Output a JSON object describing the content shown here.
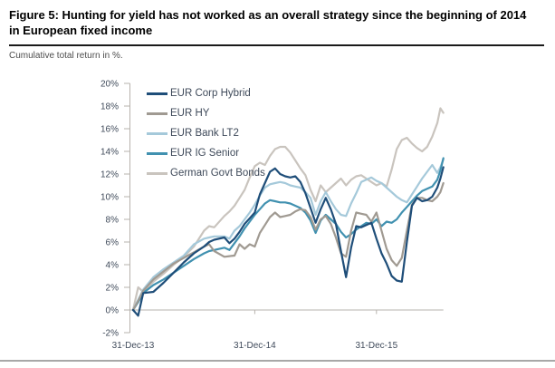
{
  "header": {
    "title": "Figure 5: Hunting for yield has not worked as an overall strategy since the beginning of 2014 in European fixed income",
    "subtitle": "Cumulative total return in %."
  },
  "legend": {
    "items": [
      {
        "label": "EUR Corp Hybrid",
        "color": "#1f4e79"
      },
      {
        "label": "EUR HY",
        "color": "#a09a92"
      },
      {
        "label": "EUR Bank LT2",
        "color": "#a5c9da"
      },
      {
        "label": "EUR IG Senior",
        "color": "#4191b0"
      },
      {
        "label": "German Govt Bonds",
        "color": "#c9c4be"
      }
    ]
  },
  "chart_data": {
    "type": "line",
    "title": "Hunting for yield has not worked as an overall strategy since the beginning of 2014 in European fixed income",
    "ylabel": "Cumulative total return in %",
    "ylim": [
      -2,
      20
    ],
    "grid": false,
    "legend_position": "top-left-inside",
    "x_unit": "months since 31-Dec-13",
    "x": [
      0,
      0.5,
      1,
      2,
      3,
      4,
      5,
      6,
      7,
      7.5,
      8,
      9,
      9.5,
      10,
      10.5,
      11,
      11.5,
      12,
      12.5,
      13,
      13.5,
      14,
      14.5,
      15,
      15.5,
      16,
      16.5,
      17,
      17.5,
      18,
      18.5,
      19,
      19.5,
      20,
      20.5,
      21,
      21.5,
      22,
      22.5,
      23,
      23.5,
      24,
      24.5,
      25,
      25.5,
      26,
      26.5,
      27,
      27.5,
      28,
      28.5,
      29,
      29.5,
      30,
      30.3,
      30.6
    ],
    "y_ticks": [
      {
        "label": "20%",
        "value": 20
      },
      {
        "label": "18%",
        "value": 18
      },
      {
        "label": "16%",
        "value": 16
      },
      {
        "label": "14%",
        "value": 14
      },
      {
        "label": "12%",
        "value": 12
      },
      {
        "label": "10%",
        "value": 10
      },
      {
        "label": "8%",
        "value": 8
      },
      {
        "label": "6%",
        "value": 6
      },
      {
        "label": "4%",
        "value": 4
      },
      {
        "label": "2%",
        "value": 2
      },
      {
        "label": "0%",
        "value": 0
      },
      {
        "label": "-2%",
        "value": -2
      }
    ],
    "x_ticks": [
      {
        "label": "31-Dec-13",
        "month": 0
      },
      {
        "label": "31-Dec-14",
        "month": 12
      },
      {
        "label": "31-Dec-15",
        "month": 24
      }
    ],
    "series": [
      {
        "name": "EUR Corp Hybrid",
        "color": "#1f4e79",
        "values": [
          0,
          -0.5,
          1.5,
          1.6,
          2.4,
          3.3,
          4.2,
          5.0,
          5.6,
          6.0,
          6.2,
          6.4,
          5.9,
          6.3,
          6.9,
          7.6,
          8.1,
          8.6,
          10.2,
          11.2,
          12.2,
          12.5,
          12.0,
          11.8,
          11.7,
          11.8,
          11.3,
          10.3,
          9.0,
          7.7,
          8.9,
          9.9,
          8.9,
          7.6,
          5.2,
          2.9,
          5.5,
          7.4,
          7.3,
          7.5,
          7.7,
          6.3,
          5.0,
          4.1,
          3.0,
          2.6,
          2.5,
          6.0,
          9.2,
          9.9,
          9.6,
          9.7,
          10.0,
          10.8,
          11.6,
          12.6
        ]
      },
      {
        "name": "EUR HY",
        "color": "#a09a92",
        "values": [
          0,
          0.8,
          1.7,
          2.7,
          3.4,
          4.1,
          4.6,
          5.1,
          5.6,
          5.8,
          5.2,
          4.7,
          4.75,
          4.8,
          5.8,
          5.4,
          5.8,
          5.6,
          6.8,
          7.5,
          8.2,
          8.6,
          8.2,
          8.3,
          8.4,
          8.7,
          8.9,
          8.8,
          8.2,
          7.1,
          8.0,
          8.3,
          7.6,
          6.4,
          5.0,
          4.7,
          7.0,
          8.6,
          8.5,
          8.4,
          7.8,
          8.6,
          7.0,
          5.4,
          4.4,
          3.9,
          4.6,
          7.0,
          9.3,
          9.9,
          9.9,
          9.7,
          9.6,
          10.0,
          10.4,
          11.2
        ]
      },
      {
        "name": "EUR Bank LT2",
        "color": "#a5c9da",
        "values": [
          0,
          0.9,
          1.8,
          2.9,
          3.6,
          4.2,
          4.8,
          5.8,
          6.3,
          6.4,
          6.5,
          6.5,
          6.3,
          7.0,
          7.4,
          8.0,
          8.6,
          9.3,
          10.1,
          10.8,
          11.1,
          11.2,
          11.3,
          11.2,
          11.0,
          10.9,
          10.8,
          10.4,
          9.9,
          8.4,
          9.6,
          10.4,
          9.6,
          8.9,
          8.4,
          8.3,
          9.4,
          10.3,
          11.3,
          11.5,
          11.7,
          11.4,
          11.2,
          10.8,
          10.4,
          10.0,
          9.7,
          9.5,
          10.2,
          10.9,
          11.6,
          12.2,
          12.8,
          12.1,
          12.6,
          13.3
        ]
      },
      {
        "name": "EUR IG Senior",
        "color": "#4191b0",
        "values": [
          0,
          0.7,
          1.5,
          2.2,
          2.7,
          3.3,
          3.9,
          4.5,
          5.0,
          5.2,
          5.3,
          5.5,
          5.3,
          5.9,
          6.5,
          7.2,
          7.8,
          8.4,
          8.9,
          9.4,
          9.7,
          9.6,
          9.5,
          9.5,
          9.4,
          9.2,
          9.0,
          8.6,
          7.9,
          6.8,
          7.9,
          8.4,
          8.0,
          7.6,
          6.9,
          6.4,
          6.7,
          7.1,
          7.4,
          7.7,
          7.6,
          8.0,
          7.4,
          7.8,
          7.7,
          8.0,
          8.6,
          9.1,
          9.6,
          10.1,
          10.5,
          10.7,
          10.9,
          11.5,
          12.3,
          13.4
        ]
      },
      {
        "name": "German Govt Bonds",
        "color": "#c9c4be",
        "values": [
          0,
          2.0,
          1.6,
          2.5,
          3.2,
          4.0,
          4.7,
          5.6,
          7.0,
          7.4,
          7.3,
          8.3,
          8.7,
          9.2,
          9.9,
          10.6,
          11.7,
          12.7,
          13.0,
          12.8,
          13.6,
          14.2,
          14.4,
          14.4,
          13.9,
          13.2,
          12.5,
          11.9,
          10.6,
          9.6,
          11.0,
          10.4,
          10.8,
          11.2,
          11.6,
          11.0,
          11.5,
          11.8,
          11.9,
          11.6,
          11.3,
          11.0,
          11.2,
          10.9,
          12.4,
          14.2,
          15.0,
          15.2,
          14.7,
          14.3,
          14.0,
          14.4,
          15.3,
          16.5,
          17.8,
          17.4
        ]
      }
    ]
  }
}
